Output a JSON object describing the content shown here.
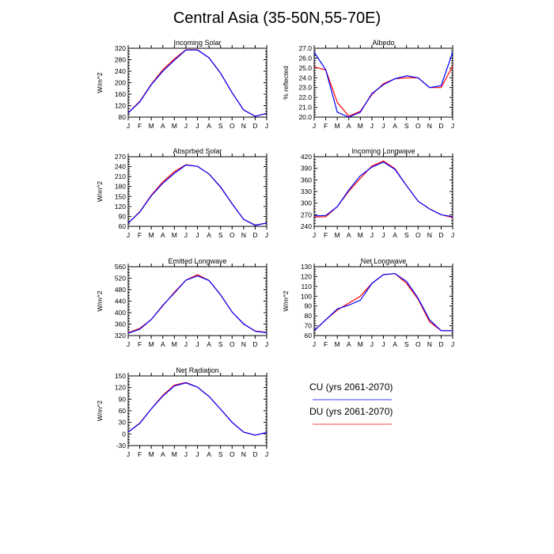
{
  "title": "Central Asia (35-50N,55-70E)",
  "months": [
    "J",
    "F",
    "M",
    "A",
    "M",
    "J",
    "J",
    "A",
    "S",
    "O",
    "N",
    "D",
    "J"
  ],
  "colors": {
    "CU": "#0000ff",
    "DU": "#ff0000"
  },
  "legend": [
    {
      "key": "CU",
      "label": "CU (yrs 2061-2070)"
    },
    {
      "key": "DU",
      "label": "DU (yrs 2061-2070)"
    }
  ],
  "chart_data": [
    {
      "type": "line",
      "title": "Incoming Solar",
      "ylabel": "W/m^2",
      "ylim": [
        80,
        320
      ],
      "yticks": [
        "80",
        "120",
        "160",
        "200",
        "240",
        "280",
        "320"
      ],
      "series": [
        {
          "name": "CU (yrs 2061-2070)",
          "values": [
            95,
            133,
            193,
            240,
            278,
            314,
            314,
            287,
            233,
            165,
            105,
            83,
            93
          ]
        },
        {
          "name": "DU (yrs 2061-2070)",
          "values": [
            95,
            135,
            195,
            245,
            283,
            315,
            315,
            287,
            233,
            165,
            105,
            83,
            93
          ]
        }
      ]
    },
    {
      "type": "line",
      "title": "Albedo",
      "ylabel": "% reflected",
      "ylim": [
        20.0,
        27.0
      ],
      "yticks": [
        "20.0",
        "21.0",
        "22.0",
        "23.0",
        "24.0",
        "25.0",
        "26.0",
        "27.0"
      ],
      "series": [
        {
          "name": "CU (yrs 2061-2070)",
          "values": [
            26.6,
            24.8,
            20.5,
            20.0,
            20.5,
            22.4,
            23.3,
            23.9,
            24.2,
            24.0,
            23.0,
            23.2,
            26.6
          ]
        },
        {
          "name": "DU (yrs 2061-2070)",
          "values": [
            25.1,
            24.8,
            21.5,
            20.1,
            20.6,
            22.3,
            23.4,
            23.9,
            24.0,
            24.0,
            23.0,
            23.0,
            25.2
          ]
        }
      ]
    },
    {
      "type": "line",
      "title": "Absorbed Solar",
      "ylabel": "W/m^2",
      "ylim": [
        60,
        270
      ],
      "yticks": [
        "60",
        "90",
        "120",
        "150",
        "180",
        "210",
        "240",
        "270"
      ],
      "series": [
        {
          "name": "CU (yrs 2061-2070)",
          "values": [
            70,
            103,
            152,
            190,
            220,
            245,
            241,
            218,
            179,
            128,
            81,
            63,
            70
          ]
        },
        {
          "name": "DU (yrs 2061-2070)",
          "values": [
            70,
            104,
            154,
            194,
            225,
            246,
            241,
            218,
            178,
            128,
            81,
            64,
            70
          ]
        }
      ]
    },
    {
      "type": "line",
      "title": "Incoming Longwave",
      "ylabel": "",
      "ylim": [
        240,
        420
      ],
      "yticks": [
        "240",
        "270",
        "300",
        "330",
        "360",
        "390",
        "420"
      ],
      "series": [
        {
          "name": "CU (yrs 2061-2070)",
          "values": [
            267,
            268,
            291,
            334,
            371,
            393,
            406,
            387,
            345,
            305,
            285,
            270,
            265
          ]
        },
        {
          "name": "DU (yrs 2061-2070)",
          "values": [
            264,
            265,
            291,
            331,
            364,
            396,
            409,
            389,
            345,
            305,
            285,
            270,
            263
          ]
        }
      ]
    },
    {
      "type": "line",
      "title": "Emitted Longwave",
      "ylabel": "W/m^2",
      "ylim": [
        320,
        560
      ],
      "yticks": [
        "320",
        "360",
        "400",
        "440",
        "480",
        "520",
        "560"
      ],
      "series": [
        {
          "name": "CU (yrs 2061-2070)",
          "values": [
            328,
            342,
            376,
            426,
            468,
            513,
            528,
            512,
            462,
            402,
            361,
            335,
            330
          ]
        },
        {
          "name": "DU (yrs 2061-2070)",
          "values": [
            330,
            345,
            376,
            424,
            471,
            513,
            532,
            512,
            462,
            402,
            360,
            336,
            331
          ]
        }
      ]
    },
    {
      "type": "line",
      "title": "Net Longwave",
      "ylabel": "W/m^2",
      "ylim": [
        60,
        130
      ],
      "yticks": [
        "60",
        "70",
        "80",
        "90",
        "100",
        "110",
        "120",
        "130"
      ],
      "series": [
        {
          "name": "CU (yrs 2061-2070)",
          "values": [
            65,
            76,
            87,
            91,
            96,
            113,
            122,
            123,
            115,
            98,
            76,
            65,
            65
          ]
        },
        {
          "name": "DU (yrs 2061-2070)",
          "values": [
            65,
            76,
            86,
            93,
            100,
            113,
            122,
            123,
            113,
            97,
            74,
            65,
            65
          ]
        }
      ]
    },
    {
      "type": "line",
      "title": "Net Radiation",
      "ylabel": "W/m^2",
      "ylim": [
        -30,
        150
      ],
      "yticks": [
        "-30",
        "0",
        "30",
        "60",
        "90",
        "120",
        "150"
      ],
      "series": [
        {
          "name": "CU (yrs 2061-2070)",
          "values": [
            5,
            27,
            65,
            98,
            124,
            132,
            121,
            97,
            64,
            30,
            5,
            -3,
            4
          ]
        },
        {
          "name": "DU (yrs 2061-2070)",
          "values": [
            5,
            28,
            65,
            100,
            126,
            133,
            121,
            97,
            64,
            30,
            5,
            -3,
            4
          ]
        }
      ]
    }
  ]
}
